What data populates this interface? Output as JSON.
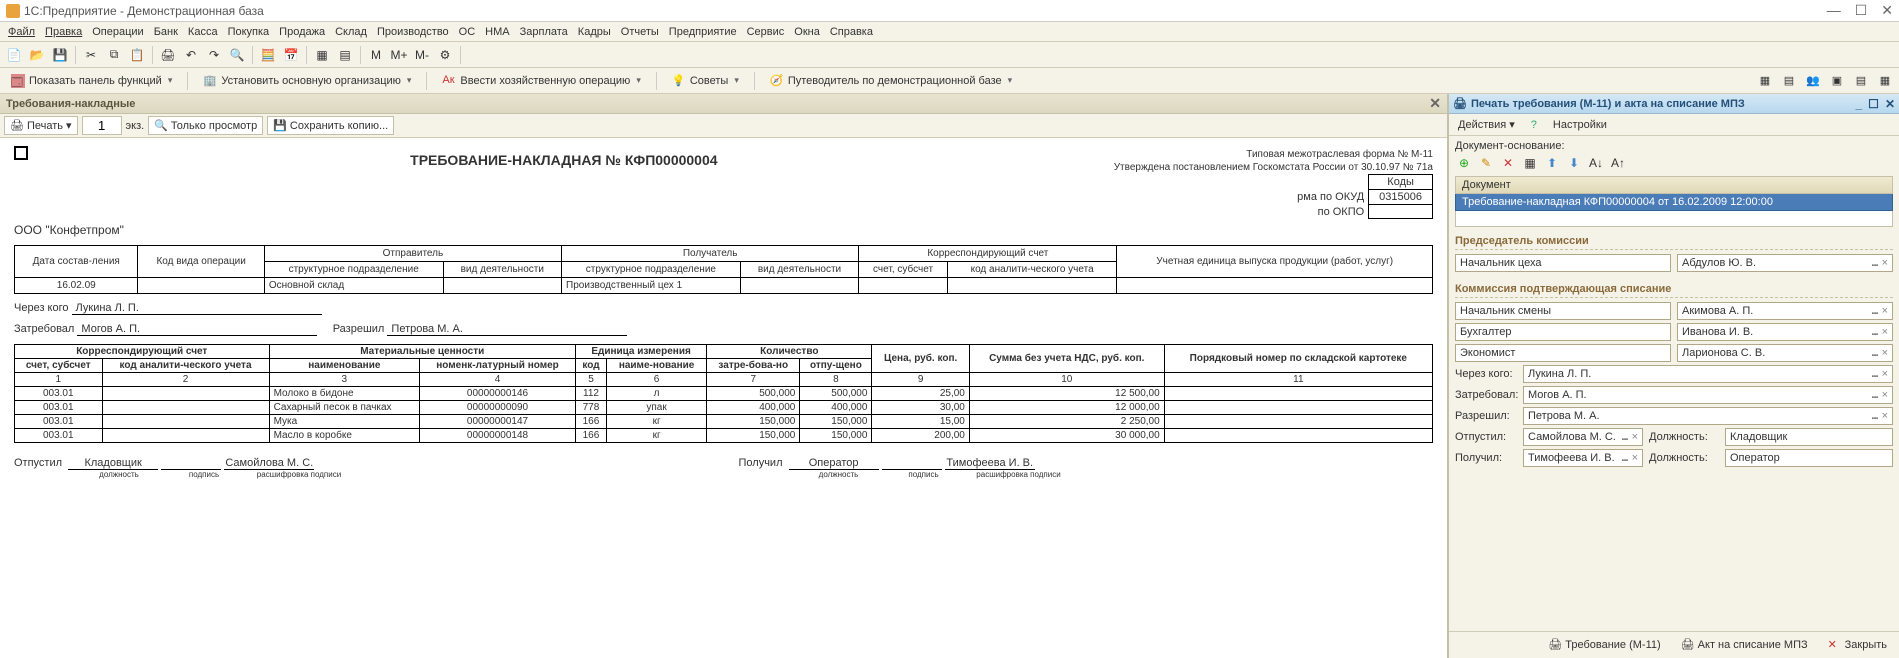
{
  "window": {
    "title": "1С:Предприятие - Демонстрационная база"
  },
  "menubar": [
    "Файл",
    "Правка",
    "Операции",
    "Банк",
    "Касса",
    "Покупка",
    "Продажа",
    "Склад",
    "Производство",
    "ОС",
    "НМА",
    "Зарплата",
    "Кадры",
    "Отчеты",
    "Предприятие",
    "Сервис",
    "Окна",
    "Справка"
  ],
  "toolbar2": {
    "show_panel": "Показать панель функций",
    "set_org": "Установить основную организацию",
    "enter_op": "Ввести хозяйственную операцию",
    "tips": "Советы",
    "guide": "Путеводитель по демонстрационной базе"
  },
  "left": {
    "tab_title": "Требования-накладные",
    "print": "Печать",
    "copies_value": "1",
    "copies_label": "экз.",
    "view_only": "Только просмотр",
    "save_copy": "Сохранить копию...",
    "form_meta1": "Типовая межотраслевая форма № М-11",
    "form_meta2": "Утверждена постановлением Госкомстата России от 30.10.97 № 71а",
    "doc_title": "ТРЕБОВАНИЕ-НАКЛАДНАЯ № КФП00000004",
    "codes_header": "Коды",
    "okud_label": "рма по ОКУД",
    "okud_value": "0315006",
    "okpo_label": "по ОКПО",
    "okpo_value": "",
    "org_name": "ООО \"Конфетпром\"",
    "hdr": {
      "date": "Дата состав-ления",
      "op_code": "Код вида операции",
      "sender": "Отправитель",
      "receiver": "Получатель",
      "corr_acc": "Корреспондирующий счет",
      "unit": "Учетная единица выпуска продукции (работ, услуг)",
      "struct": "структурное подразделение",
      "activity": "вид деятельности",
      "acc_sub": "счет, субсчет",
      "analytic": "код аналити-ческого учета"
    },
    "row1": {
      "date": "16.02.09",
      "sender_struct": "Основной склад",
      "receiver_struct": "Производственный цех 1"
    },
    "sig": {
      "through_lbl": "Через кого",
      "through_val": "Лукина Л. П.",
      "requested_lbl": "Затребовал",
      "requested_val": "Могов А. П.",
      "allowed_lbl": "Разрешил",
      "allowed_val": "Петрова М. А."
    },
    "items_hdr": {
      "corr": "Корреспондирующий счет",
      "material": "Материальные ценности",
      "unit": "Единица измерения",
      "qty": "Количество",
      "price": "Цена, руб. коп.",
      "sum": "Сумма без учета НДС, руб. коп.",
      "seq": "Порядковый номер по складской картотеке",
      "acc": "счет, субсчет",
      "analytic": "код аналити-ческого учета",
      "name": "наименование",
      "nomnum": "номенк-латурный номер",
      "code": "код",
      "uname": "наиме-нование",
      "req": "затре-бова-но",
      "rel": "отпу-щено"
    },
    "colnums": [
      "1",
      "2",
      "3",
      "4",
      "5",
      "6",
      "7",
      "8",
      "9",
      "10",
      "11"
    ],
    "items": [
      {
        "acc": "003.01",
        "name": "Молоко в бидоне",
        "nom": "00000000146",
        "code": "112",
        "unit": "л",
        "req": "500,000",
        "rel": "500,000",
        "price": "25,00",
        "sum": "12 500,00"
      },
      {
        "acc": "003.01",
        "name": "Сахарный песок в пачках",
        "nom": "00000000090",
        "code": "778",
        "unit": "упак",
        "req": "400,000",
        "rel": "400,000",
        "price": "30,00",
        "sum": "12 000,00"
      },
      {
        "acc": "003.01",
        "name": "Мука",
        "nom": "00000000147",
        "code": "166",
        "unit": "кг",
        "req": "150,000",
        "rel": "150,000",
        "price": "15,00",
        "sum": "2 250,00"
      },
      {
        "acc": "003.01",
        "name": "Масло в коробке",
        "nom": "00000000148",
        "code": "166",
        "unit": "кг",
        "req": "150,000",
        "rel": "150,000",
        "price": "200,00",
        "sum": "30 000,00"
      }
    ],
    "footer": {
      "released": "Отпустил",
      "pos1": "Кладовщик",
      "name1": "Самойлова М. С.",
      "received": "Получил",
      "pos2": "Оператор",
      "name2": "Тимофеева И. В.",
      "sub_pos": "должность",
      "sub_sign": "подпись",
      "sub_name": "расшифровка подписи"
    }
  },
  "right": {
    "title": "Печать требования (М-11) и акта на списание МПЗ",
    "actions": "Действия",
    "settings": "Настройки",
    "doc_basis": "Документ-основание:",
    "list_header": "Документ",
    "list_row": "Требование-накладная КФП00000004 от 16.02.2009 12:00:00",
    "chairman_group": "Председатель комиссии",
    "chairman_pos": "Начальник цеха",
    "chairman_name": "Абдулов Ю. В.",
    "commission_group": "Коммиссия подтверждающая списание",
    "c1_pos": "Начальник смены",
    "c1_name": "Акимова А. П.",
    "c2_pos": "Бухгалтер",
    "c2_name": "Иванова И. В.",
    "c3_pos": "Экономист",
    "c3_name": "Ларионова С. В.",
    "through_lbl": "Через кого:",
    "through_val": "Лукина  Л. П.",
    "req_lbl": "Затребовал:",
    "req_val": "Могов А. П.",
    "allow_lbl": "Разрешил:",
    "allow_val": "Петрова М. А.",
    "rel_lbl": "Отпустил:",
    "rel_val": "Самойлова М. С.",
    "pos_lbl": "Должность:",
    "rel_pos": "Кладовщик",
    "recv_lbl": "Получил:",
    "recv_val": "Тимофеева И. В.",
    "recv_pos": "Оператор",
    "btn_req": "Требование (М-11)",
    "btn_act": "Акт на списание МПЗ",
    "btn_close": "Закрыть"
  }
}
